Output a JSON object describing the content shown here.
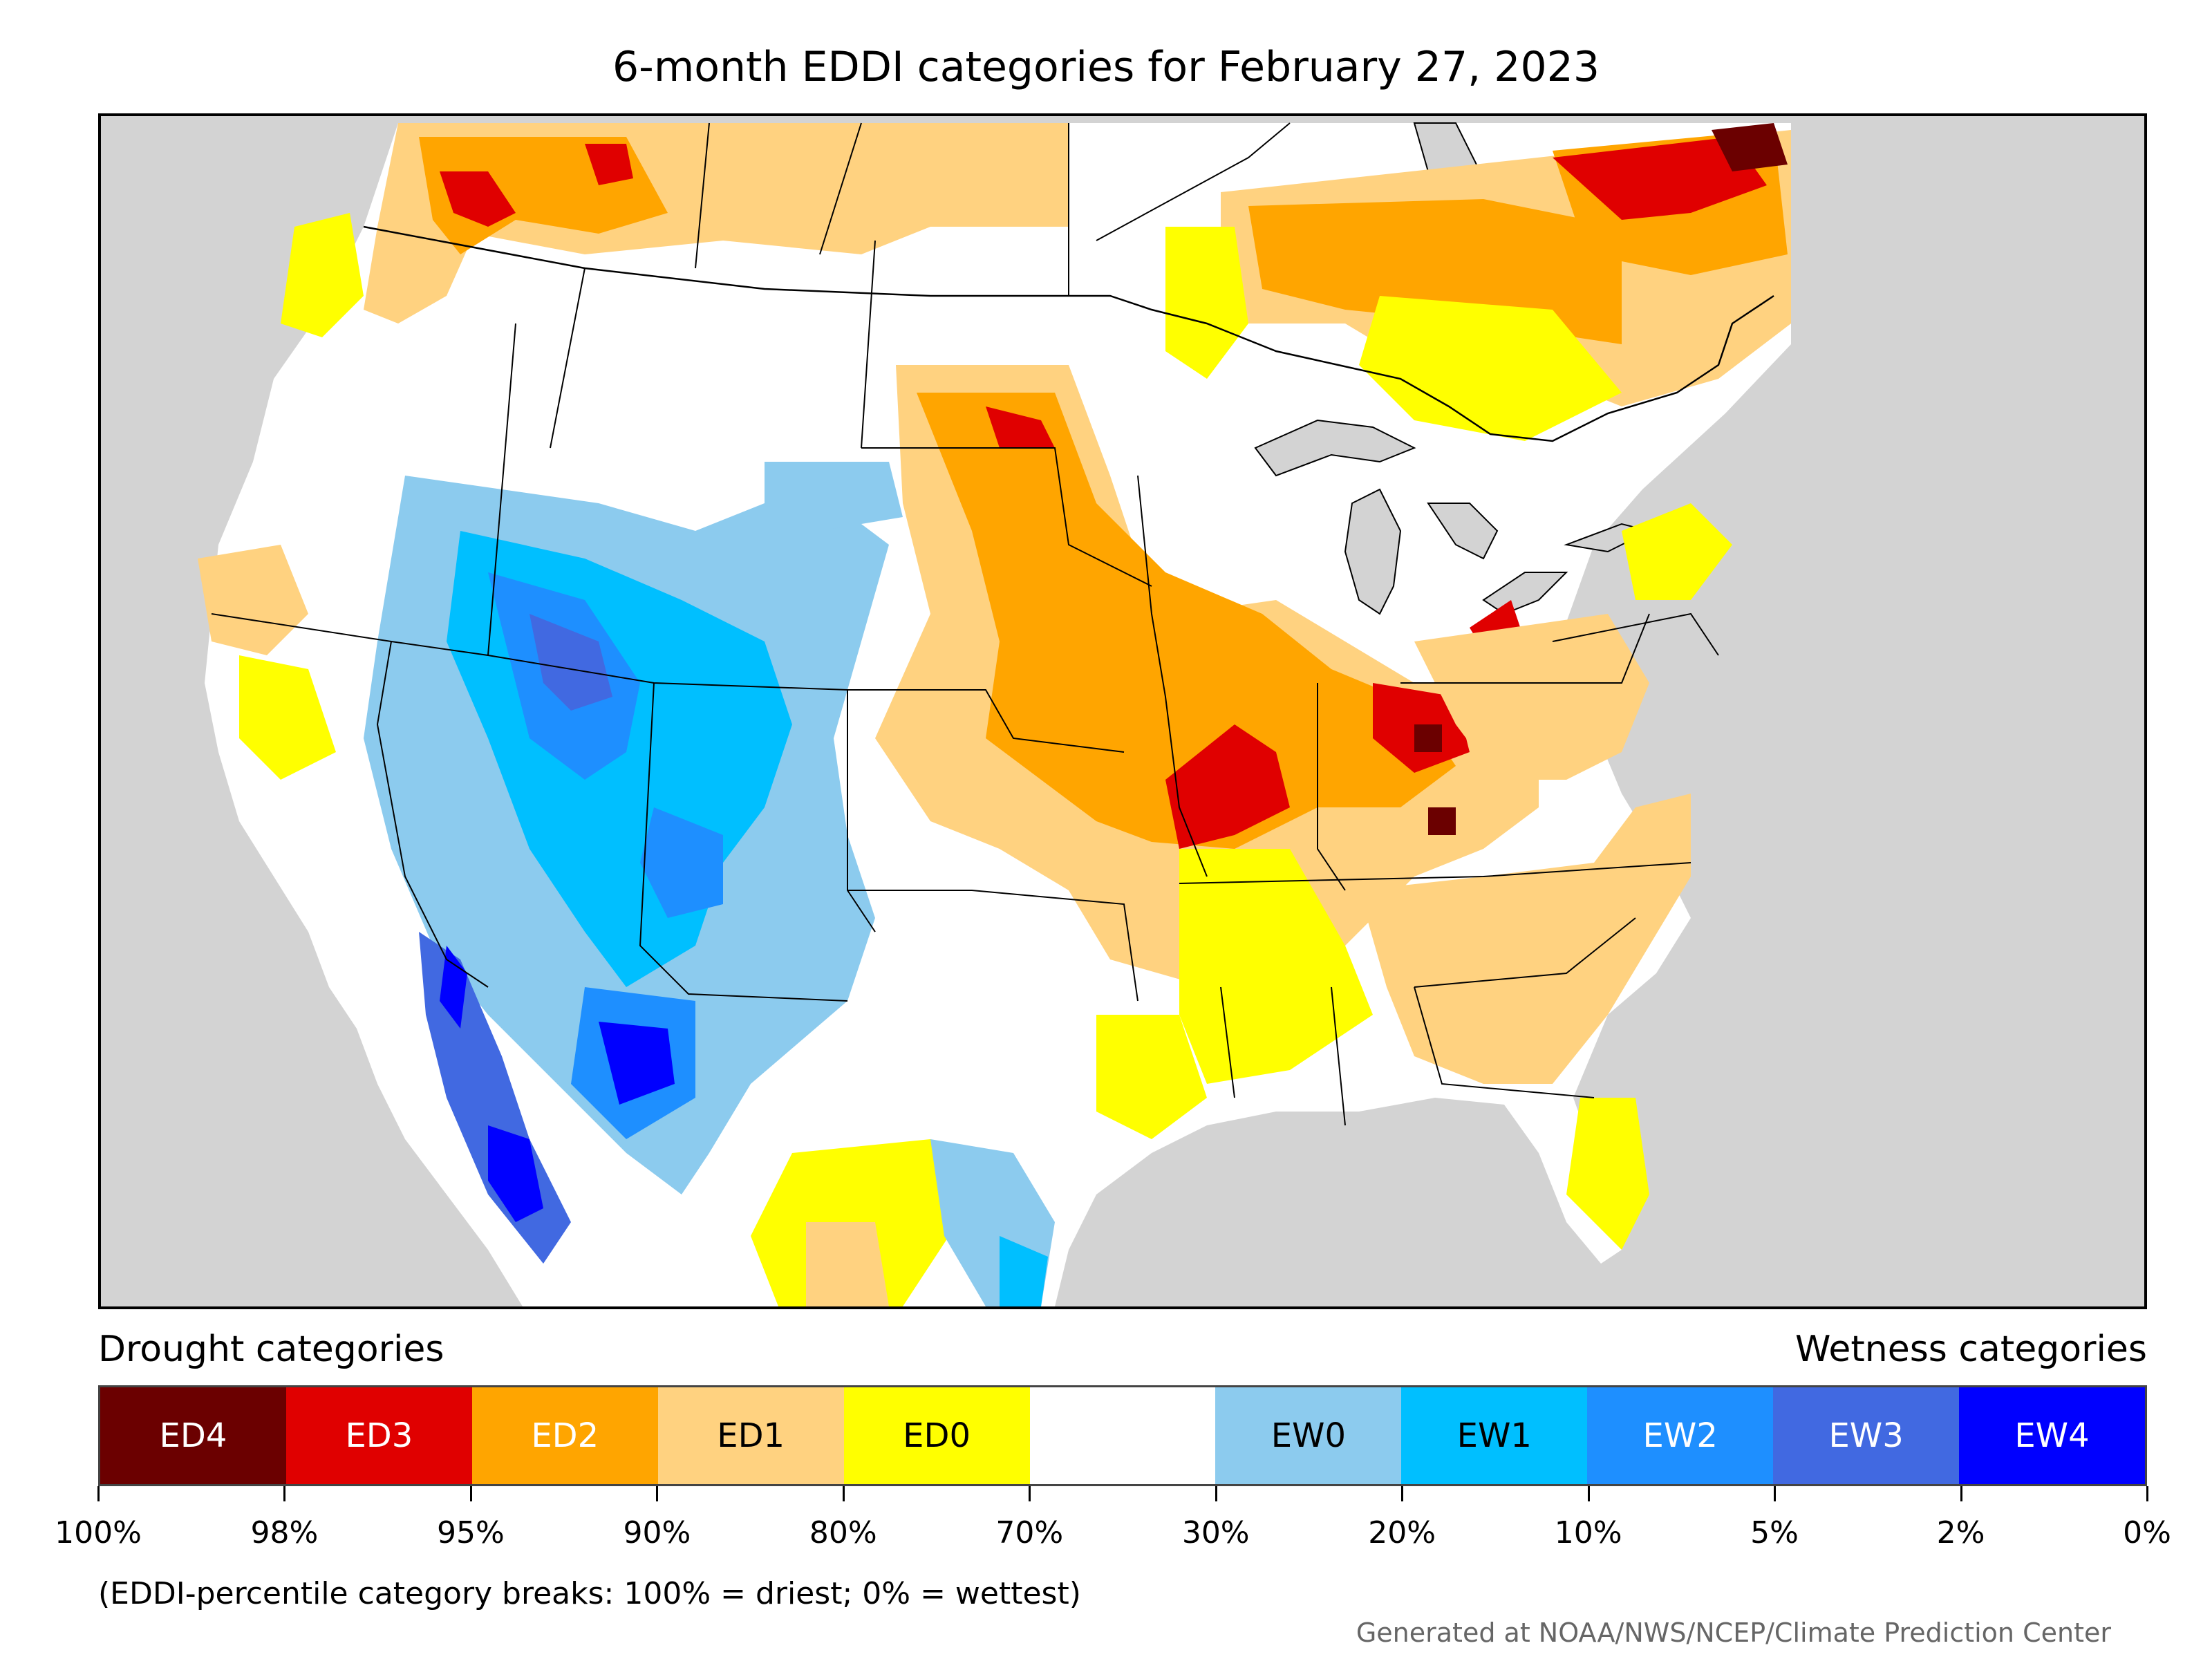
{
  "title": "6-month EDDI categories for February 27, 2023",
  "legend": {
    "drought_heading": "Drought categories",
    "wetness_heading": "Wetness categories",
    "categories": [
      {
        "label": "ED4",
        "color": "#6b0000",
        "text_color": "#ffffff"
      },
      {
        "label": "ED3",
        "color": "#e00000",
        "text_color": "#ffffff"
      },
      {
        "label": "ED2",
        "color": "#ffa500",
        "text_color": "#ffffff"
      },
      {
        "label": "ED1",
        "color": "#ffd280",
        "text_color": "#000000"
      },
      {
        "label": "ED0",
        "color": "#ffff00",
        "text_color": "#000000"
      },
      {
        "label": "",
        "color": "#ffffff",
        "text_color": "#000000"
      },
      {
        "label": "EW0",
        "color": "#8ccbee",
        "text_color": "#000000"
      },
      {
        "label": "EW1",
        "color": "#00bfff",
        "text_color": "#000000"
      },
      {
        "label": "EW2",
        "color": "#1e8fff",
        "text_color": "#ffffff"
      },
      {
        "label": "EW3",
        "color": "#4169e1",
        "text_color": "#ffffff"
      },
      {
        "label": "EW4",
        "color": "#0000ff",
        "text_color": "#ffffff"
      }
    ],
    "ticks": [
      "100%",
      "98%",
      "95%",
      "90%",
      "80%",
      "70%",
      "30%",
      "20%",
      "10%",
      "5%",
      "2%",
      "0%"
    ]
  },
  "footnote": "(EDDI-percentile category breaks: 100% = driest; 0% = wettest)",
  "credit": "Generated at NOAA/NWS/NCEP/Climate Prediction Center",
  "map": {
    "ocean_color": "#d3d3d3",
    "land_color": "#ffffff",
    "border_color": "#000000"
  }
}
